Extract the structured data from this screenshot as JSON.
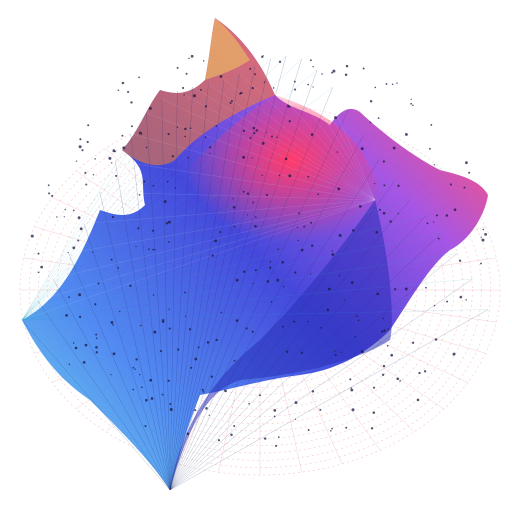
{
  "artwork": {
    "subject": "abstract-3d-wireframe-surface",
    "background": "#ffffff",
    "palette": [
      "#2b2fd6",
      "#3a7bf0",
      "#5fd6e8",
      "#9a3fe0",
      "#ff3b6b",
      "#ff7a2a",
      "#f5d35a"
    ],
    "grid_color": "#e05a6e",
    "node_color": "#1a1a40"
  }
}
